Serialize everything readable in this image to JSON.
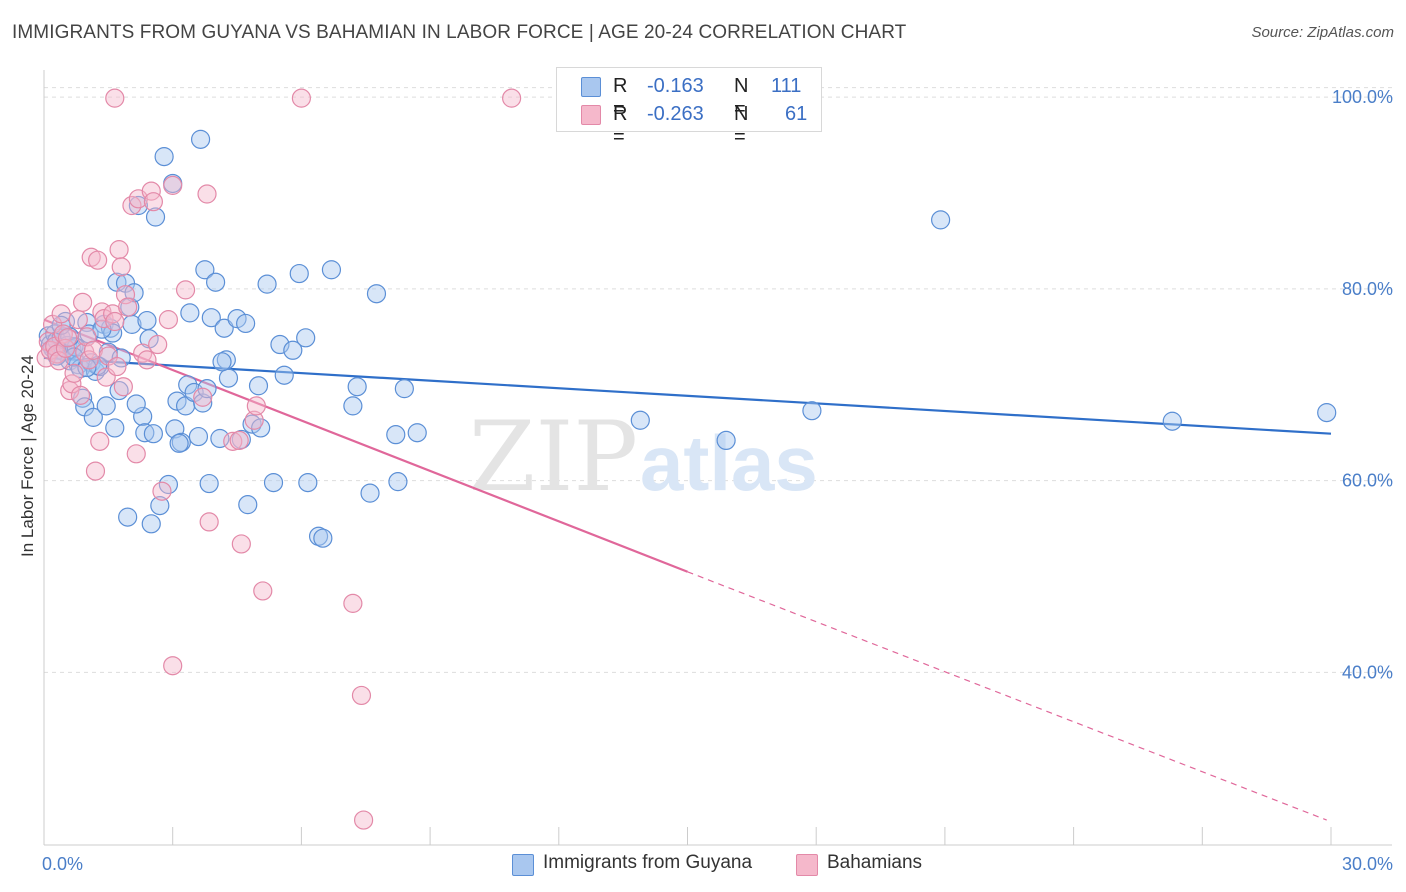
{
  "title": "IMMIGRANTS FROM GUYANA VS BAHAMIAN IN LABOR FORCE | AGE 20-24 CORRELATION CHART",
  "source": "Source: ZipAtlas.com",
  "watermark": {
    "zip": "ZIP",
    "atlas": "atlas"
  },
  "colors": {
    "blue_fill": "#a9c7ef",
    "blue_stroke": "#5b8fd6",
    "blue_line": "#2f6fc9",
    "pink_fill": "#f5b8cb",
    "pink_stroke": "#e389a8",
    "pink_line": "#e0679a",
    "tick_text": "#4a7ec8",
    "grid": "#dddddd"
  },
  "legend": {
    "rows": [
      {
        "r_label": "R =",
        "r_value": "-0.163",
        "n_label": "N =",
        "n_value": "111",
        "color": "#a9c7ef"
      },
      {
        "r_label": "R =",
        "r_value": "-0.263",
        "n_label": "N =",
        "n_value": "61",
        "color": "#f5b8cb"
      }
    ]
  },
  "bottom_legend": [
    {
      "label": "Immigrants from Guyana",
      "color": "#a9c7ef"
    },
    {
      "label": "Bahamians",
      "color": "#f5b8cb"
    }
  ],
  "chart_data": {
    "type": "scatter",
    "title": "IMMIGRANTS FROM GUYANA VS BAHAMIAN IN LABOR FORCE | AGE 20-24 CORRELATION CHART",
    "xlabel": "",
    "ylabel": "In Labor Force | Age 20-24",
    "x_unit": "%",
    "y_unit": "%",
    "xlim": [
      0,
      30
    ],
    "ylim": [
      22,
      102
    ],
    "x_tick_labels": [
      "0.0%",
      "30.0%"
    ],
    "y_ticks": [
      40,
      60,
      80,
      100
    ],
    "y_tick_labels": [
      "40.0%",
      "60.0%",
      "80.0%",
      "100.0%"
    ],
    "grid": true,
    "legend_position": "top-center",
    "series": [
      {
        "name": "Immigrants from Guyana",
        "color": "#a9c7ef",
        "R": -0.163,
        "N": 111,
        "trend": {
          "x": [
            0,
            30
          ],
          "y": [
            72.8,
            64.9
          ]
        },
        "points": [
          [
            0.1,
            75.1
          ],
          [
            0.15,
            74.2
          ],
          [
            0.2,
            73.8
          ],
          [
            0.25,
            75.3
          ],
          [
            0.3,
            74.6
          ],
          [
            0.35,
            73.2
          ],
          [
            0.4,
            74.9
          ],
          [
            0.45,
            73.5
          ],
          [
            0.5,
            76.6
          ],
          [
            0.55,
            74.1
          ],
          [
            0.6,
            72.5
          ],
          [
            0.65,
            73.7
          ],
          [
            0.7,
            74.0
          ],
          [
            0.75,
            73.9
          ],
          [
            0.8,
            72.1
          ],
          [
            0.85,
            71.7
          ],
          [
            0.9,
            68.6
          ],
          [
            0.95,
            67.7
          ],
          [
            1.0,
            76.5
          ],
          [
            1.05,
            75.3
          ],
          [
            1.1,
            72.3
          ],
          [
            1.15,
            66.6
          ],
          [
            1.2,
            71.4
          ],
          [
            1.3,
            71.9
          ],
          [
            1.4,
            76.3
          ],
          [
            1.45,
            67.8
          ],
          [
            1.5,
            73.4
          ],
          [
            1.55,
            75.9
          ],
          [
            1.6,
            75.4
          ],
          [
            1.65,
            65.5
          ],
          [
            1.7,
            80.7
          ],
          [
            1.75,
            69.4
          ],
          [
            1.8,
            72.8
          ],
          [
            1.9,
            80.6
          ],
          [
            1.95,
            56.2
          ],
          [
            2.0,
            78.1
          ],
          [
            2.05,
            76.3
          ],
          [
            2.1,
            79.6
          ],
          [
            2.2,
            88.7
          ],
          [
            2.3,
            66.7
          ],
          [
            2.35,
            65.0
          ],
          [
            2.4,
            76.7
          ],
          [
            2.45,
            74.8
          ],
          [
            2.5,
            55.5
          ],
          [
            2.55,
            64.9
          ],
          [
            2.6,
            87.5
          ],
          [
            2.7,
            57.4
          ],
          [
            2.8,
            93.8
          ],
          [
            2.9,
            59.6
          ],
          [
            3.0,
            91.0
          ],
          [
            3.05,
            65.4
          ],
          [
            3.1,
            68.3
          ],
          [
            3.2,
            64.0
          ],
          [
            3.3,
            67.8
          ],
          [
            3.35,
            70.0
          ],
          [
            3.4,
            77.5
          ],
          [
            3.5,
            69.2
          ],
          [
            3.6,
            64.6
          ],
          [
            3.65,
            95.6
          ],
          [
            3.7,
            68.1
          ],
          [
            3.75,
            82.0
          ],
          [
            3.8,
            69.6
          ],
          [
            3.85,
            59.7
          ],
          [
            3.9,
            77.0
          ],
          [
            4.0,
            80.7
          ],
          [
            4.1,
            64.4
          ],
          [
            4.2,
            75.9
          ],
          [
            4.25,
            72.6
          ],
          [
            4.3,
            70.7
          ],
          [
            4.5,
            76.9
          ],
          [
            4.6,
            64.3
          ],
          [
            4.7,
            76.4
          ],
          [
            4.75,
            57.5
          ],
          [
            4.85,
            65.9
          ],
          [
            5.0,
            69.9
          ],
          [
            5.05,
            65.5
          ],
          [
            5.2,
            80.5
          ],
          [
            5.35,
            59.8
          ],
          [
            5.5,
            74.2
          ],
          [
            5.6,
            71.0
          ],
          [
            5.8,
            73.6
          ],
          [
            5.95,
            81.6
          ],
          [
            6.1,
            74.9
          ],
          [
            6.15,
            59.8
          ],
          [
            6.4,
            54.2
          ],
          [
            6.5,
            54.0
          ],
          [
            6.7,
            82.0
          ],
          [
            7.2,
            67.8
          ],
          [
            7.3,
            69.8
          ],
          [
            7.6,
            58.7
          ],
          [
            7.75,
            79.5
          ],
          [
            8.2,
            64.8
          ],
          [
            8.25,
            59.9
          ],
          [
            8.4,
            69.6
          ],
          [
            8.7,
            65.0
          ],
          [
            13.9,
            66.3
          ],
          [
            15.9,
            64.2
          ],
          [
            17.9,
            67.3
          ],
          [
            20.9,
            87.2
          ],
          [
            26.3,
            66.2
          ],
          [
            29.9,
            67.1
          ],
          [
            0.3,
            73.0
          ],
          [
            0.6,
            75.0
          ],
          [
            1.25,
            72.0
          ],
          [
            1.35,
            75.8
          ],
          [
            2.15,
            68.0
          ],
          [
            3.15,
            63.9
          ],
          [
            4.15,
            72.4
          ],
          [
            0.4,
            76.2
          ],
          [
            0.7,
            72.9
          ],
          [
            1.0,
            71.8
          ]
        ]
      },
      {
        "name": "Bahamians",
        "color": "#f5b8cb",
        "R": -0.263,
        "N": 61,
        "trend": {
          "x": [
            0,
            15
          ],
          "y": [
            76.8,
            50.5
          ]
        },
        "trend_extension": {
          "x": [
            15,
            29.9
          ],
          "y": [
            50.5,
            24.6
          ]
        },
        "points": [
          [
            0.05,
            72.8
          ],
          [
            0.1,
            74.5
          ],
          [
            0.15,
            73.6
          ],
          [
            0.2,
            76.3
          ],
          [
            0.25,
            74.0
          ],
          [
            0.3,
            73.2
          ],
          [
            0.35,
            72.5
          ],
          [
            0.4,
            77.4
          ],
          [
            0.45,
            75.3
          ],
          [
            0.5,
            73.8
          ],
          [
            0.55,
            74.9
          ],
          [
            0.6,
            69.4
          ],
          [
            0.65,
            70.1
          ],
          [
            0.7,
            71.2
          ],
          [
            0.8,
            76.8
          ],
          [
            0.85,
            68.9
          ],
          [
            0.9,
            78.6
          ],
          [
            0.95,
            73.4
          ],
          [
            1.0,
            75.0
          ],
          [
            1.05,
            72.6
          ],
          [
            1.1,
            83.3
          ],
          [
            1.15,
            73.6
          ],
          [
            1.2,
            61.0
          ],
          [
            1.25,
            83.0
          ],
          [
            1.3,
            64.1
          ],
          [
            1.35,
            77.6
          ],
          [
            1.4,
            76.9
          ],
          [
            1.45,
            70.8
          ],
          [
            1.5,
            73.0
          ],
          [
            1.6,
            77.4
          ],
          [
            1.65,
            76.6
          ],
          [
            1.7,
            71.9
          ],
          [
            1.75,
            84.1
          ],
          [
            1.8,
            82.3
          ],
          [
            1.85,
            69.8
          ],
          [
            1.9,
            79.4
          ],
          [
            1.95,
            78.1
          ],
          [
            2.05,
            88.7
          ],
          [
            2.15,
            62.8
          ],
          [
            2.2,
            89.4
          ],
          [
            2.3,
            73.3
          ],
          [
            2.4,
            72.6
          ],
          [
            2.5,
            90.2
          ],
          [
            2.55,
            89.1
          ],
          [
            2.65,
            74.2
          ],
          [
            2.75,
            58.9
          ],
          [
            2.9,
            76.8
          ],
          [
            3.0,
            90.8
          ],
          [
            3.3,
            79.9
          ],
          [
            3.7,
            68.7
          ],
          [
            3.8,
            89.9
          ],
          [
            3.85,
            55.7
          ],
          [
            4.4,
            64.1
          ],
          [
            4.55,
            64.2
          ],
          [
            4.6,
            53.4
          ],
          [
            4.9,
            66.3
          ],
          [
            4.95,
            67.8
          ],
          [
            5.1,
            48.5
          ],
          [
            7.2,
            47.2
          ],
          [
            7.45,
            24.6
          ],
          [
            1.65,
            99.9
          ]
        ]
      }
    ],
    "extra_points_pink": [
      [
        3.0,
        40.7
      ],
      [
        7.4,
        37.6
      ],
      [
        6.0,
        99.9
      ],
      [
        10.9,
        99.9
      ]
    ]
  }
}
